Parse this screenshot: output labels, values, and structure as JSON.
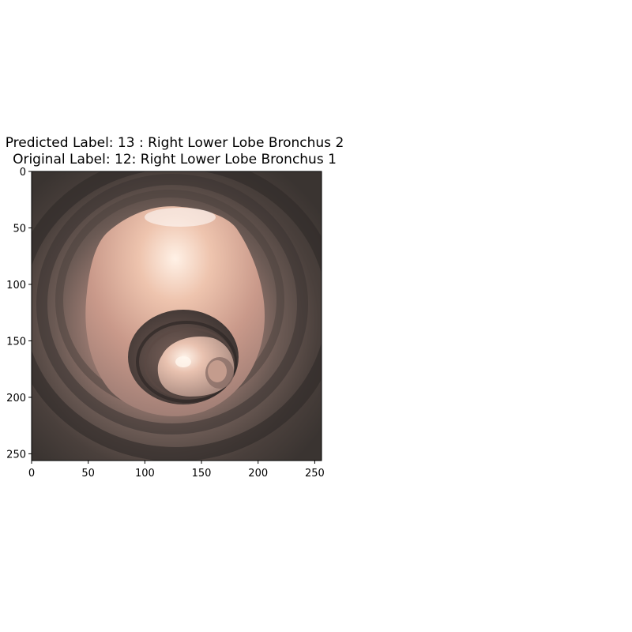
{
  "figure": {
    "title_line1": "Predicted Label: 13 : Right Lower Lobe Bronchus 2",
    "title_line2": "Original Label: 12: Right Lower Lobe Bronchus 1"
  },
  "axes": {
    "x_ticks": [
      "0",
      "50",
      "100",
      "150",
      "200",
      "250"
    ],
    "y_ticks": [
      "0",
      "50",
      "100",
      "150",
      "200",
      "250"
    ],
    "x_range": [
      0,
      256
    ],
    "y_range": [
      0,
      256
    ]
  },
  "image": {
    "subject": "endoscopic-bronchus-view",
    "colors": {
      "wall_dark": "#3a3431",
      "tissue": "#c99b8a",
      "highlight": "#f4d8c8"
    }
  }
}
